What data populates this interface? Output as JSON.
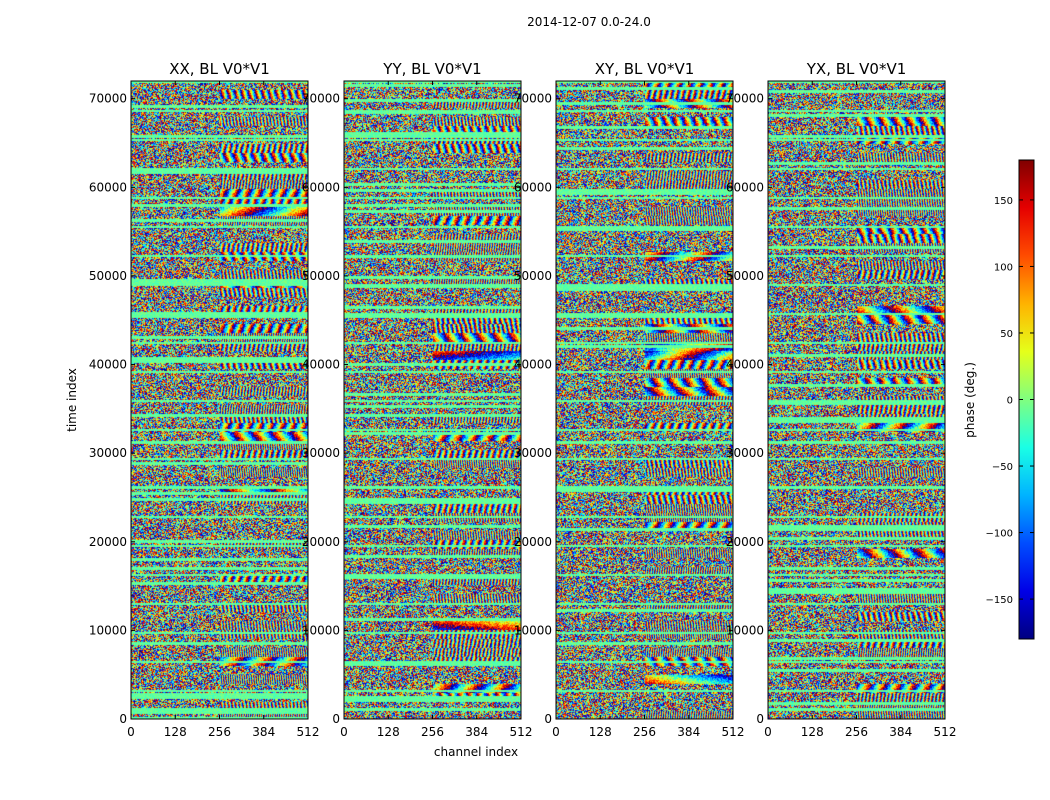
{
  "figure": {
    "suptitle": "2014-12-07 0.0-24.0"
  },
  "chart_data": {
    "type": "heatmap",
    "shared": {
      "xlabel": "channel index",
      "ylabel": "time index",
      "xlim": [
        0,
        512
      ],
      "ylim": [
        0,
        72000
      ],
      "xticks": [
        0,
        128,
        256,
        384,
        512
      ],
      "yticks": [
        0,
        10000,
        20000,
        30000,
        40000,
        50000,
        60000,
        70000
      ],
      "colormap": "jet",
      "value_range": [
        -180,
        180
      ]
    },
    "panels": [
      {
        "title": "XX, BL V0*V1",
        "polarization": "XX"
      },
      {
        "title": "YY, BL V0*V1",
        "polarization": "YY"
      },
      {
        "title": "XY, BL V0*V1",
        "polarization": "XY"
      },
      {
        "title": "YX, BL V0*V1",
        "polarization": "YX"
      }
    ],
    "colorbar": {
      "label": "phase (deg.)",
      "ticks": [
        -150,
        -100,
        -50,
        0,
        50,
        100,
        150
      ],
      "tick_labels": [
        "−150",
        "−100",
        "−50",
        "0",
        "50",
        "100",
        "150"
      ],
      "range": [
        -180,
        180
      ]
    }
  }
}
